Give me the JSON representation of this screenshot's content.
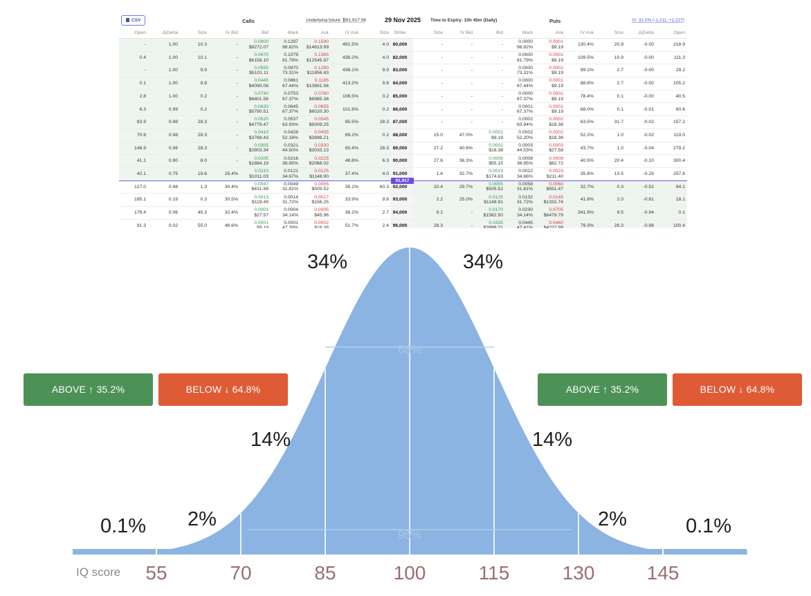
{
  "toolbar": {
    "csv_label": "CSV",
    "calls_label": "Calls",
    "underlying": "Underlying future:  ₿91,917.08",
    "date": "29 Nov 2025",
    "expiry": "Time to Expiry: 15h 45m (Daily)",
    "puts_label": "Puts",
    "iv": "IV: 32.0% (-1,211, +1,227)"
  },
  "columns": [
    "Open",
    "Δ|Delta",
    "Size",
    "IV Bid",
    "Bid",
    "Mark",
    "Ask",
    "IV Ask",
    "Size",
    "Strike",
    "Size",
    "IV Bid",
    "Bid",
    "Mark",
    "Ask",
    "IV Ask",
    "Size",
    "Δ|Delta",
    "Open"
  ],
  "underlying_marker": "91,917",
  "rows": [
    {
      "c_open": "-",
      "c_delta": "1.00",
      "c_size": "10.3",
      "c_ivbid": "-",
      "c_bid": "",
      "c_bid_usd": "",
      "c_mark": "0.1297",
      "c_mark_pct": "98.82%",
      "c_ask": "0.1590",
      "c_ask_usd": "$14613.99",
      "c_ivask": "491.5%",
      "c_asksize": "4.0",
      "strike": "80,000",
      "p_size": "-",
      "p_ivbid": "-",
      "p_bid": "-",
      "p_bid_usd": "",
      "p_mark": "0.0000",
      "p_mark_pct": "98.82%",
      "p_ask": "0.0001",
      "p_ask_usd": "$9.19",
      "p_ivask": "130.4%",
      "p_asksize": "20.9",
      "p_delta": "-0.00",
      "p_open": "218.9",
      "c_bid2": "0.0900",
      "c_bid2_usd": "$8272.07"
    },
    {
      "c_open": "0.4",
      "c_delta": "1.00",
      "c_size": "10.1",
      "c_ivbid": "-",
      "c_bid2": "0.0670",
      "c_bid2_usd": "$6158.10",
      "c_mark": "0.1079",
      "c_mark_pct": "81.79%",
      "c_ask": "0.1365",
      "c_ask_usd": "$12545.97",
      "c_ivask": "436.2%",
      "c_asksize": "4.0",
      "strike": "82,000",
      "p_size": "-",
      "p_ivbid": "-",
      "p_bid": "-",
      "p_bid_usd": "",
      "p_mark": "0.0000",
      "p_mark_pct": "81.79%",
      "p_ask": "0.0001",
      "p_ask_usd": "$9.19",
      "p_ivask": "109.5%",
      "p_asksize": "10.9",
      "p_delta": "-0.00",
      "p_open": "111.3"
    },
    {
      "c_open": "-",
      "c_delta": "1.00",
      "c_size": "9.9",
      "c_ivbid": "-",
      "c_bid2": "0.0555",
      "c_bid2_usd": "$5101.11",
      "c_mark": "0.0970",
      "c_mark_pct": "73.31%",
      "c_ask": "0.1290",
      "c_ask_usd": "$11856.63",
      "c_ivask": "436.1%",
      "c_asksize": "9.9",
      "strike": "83,000",
      "p_size": "-",
      "p_ivbid": "-",
      "p_bid": "-",
      "p_bid_usd": "",
      "p_mark": "0.0000",
      "p_mark_pct": "73.31%",
      "p_ask": "0.0001",
      "p_ask_usd": "$9.19",
      "p_ivask": "99.1%",
      "p_asksize": "2.7",
      "p_delta": "-0.00",
      "p_open": "29.2"
    },
    {
      "c_open": "0.1",
      "c_delta": "1.00",
      "c_size": "9.8",
      "c_ivbid": "-",
      "c_bid2": "0.0445",
      "c_bid2_usd": "$4090.08",
      "c_mark": "0.0861",
      "c_mark_pct": "67.44%",
      "c_ask": "0.1185",
      "c_ask_usd": "$10891.56",
      "c_ivask": "413.2%",
      "c_asksize": "9.8",
      "strike": "84,000",
      "p_size": "-",
      "p_ivbid": "-",
      "p_bid": "-",
      "p_bid_usd": "",
      "p_mark": "0.0000",
      "p_mark_pct": "67.44%",
      "p_ask": "0.0001",
      "p_ask_usd": "$9.19",
      "p_ivask": "88.8%",
      "p_asksize": "2.7",
      "p_delta": "-0.00",
      "p_open": "105.2"
    },
    {
      "c_open": "2.8",
      "c_delta": "1.00",
      "c_size": "0.2",
      "c_ivbid": "-",
      "c_bid2": "0.0740",
      "c_bid2_usd": "$6801.56",
      "c_mark": "0.0753",
      "c_mark_pct": "67.37%",
      "c_ask": "0.0760",
      "c_ask_usd": "$6985.38",
      "c_ivask": "106.5%",
      "c_asksize": "0.2",
      "strike": "85,000",
      "p_size": "-",
      "p_ivbid": "-",
      "p_bid": "-",
      "p_bid_usd": "",
      "p_mark": "0.0000",
      "p_mark_pct": "67.37%",
      "p_ask": "0.0001",
      "p_ask_usd": "$9.19",
      "p_ivask": "78.4%",
      "p_asksize": "0.1",
      "p_delta": "-0.00",
      "p_open": "40.5"
    },
    {
      "c_open": "6.3",
      "c_delta": "0.99",
      "c_size": "0.2",
      "c_ivbid": "-",
      "c_bid2": "0.0630",
      "c_bid2_usd": "$5790.51",
      "c_mark": "0.0645",
      "c_mark_pct": "67.37%",
      "c_ask": "0.0655",
      "c_ask_usd": "$6020.30",
      "c_ivask": "101.8%",
      "c_asksize": "0.2",
      "strike": "86,000",
      "p_size": "-",
      "p_ivbid": "-",
      "p_bid": "-",
      "p_bid_usd": "",
      "p_mark": "0.0001",
      "p_mark_pct": "67.37%",
      "p_ask": "0.0001",
      "p_ask_usd": "$9.19",
      "p_ivask": "68.0%",
      "p_asksize": "0.1",
      "p_delta": "-0.01",
      "p_open": "60.6"
    },
    {
      "c_open": "83.9",
      "c_delta": "0.98",
      "c_size": "28.3",
      "c_ivbid": "-",
      "c_bid2": "0.0520",
      "c_bid2_usd": "$4779.47",
      "c_mark": "0.0537",
      "c_mark_pct": "63.93%",
      "c_ask": "0.0545",
      "c_ask_usd": "$5009.25",
      "c_ivask": "85.5%",
      "c_asksize": "28.3",
      "strike": "87,000",
      "p_size": "-",
      "p_ivbid": "-",
      "p_bid": "-",
      "p_bid_usd": "",
      "p_mark": "0.0002",
      "p_mark_pct": "63.94%",
      "p_ask": "0.0002",
      "p_ask_usd": "$18.38",
      "p_ivask": "63.5%",
      "p_asksize": "31.7",
      "p_delta": "-0.02",
      "p_open": "157.2"
    },
    {
      "c_open": "70.6",
      "c_delta": "0.98",
      "c_size": "28.3",
      "c_ivbid": "-",
      "c_bid2": "0.0410",
      "c_bid2_usd": "$3768.43",
      "c_mark": "0.0428",
      "c_mark_pct": "52.18%",
      "c_ask": "0.0435",
      "c_ask_usd": "$3998.21",
      "c_ivask": "69.2%",
      "c_asksize": "0.2",
      "strike": "88,000",
      "p_size": "15.0",
      "p_ivbid": "47.0%",
      "p_bid": "0.0001",
      "p_bid_usd": "$9.19",
      "p_mark": "0.0002",
      "p_mark_pct": "52.20%",
      "p_ask": "0.0002",
      "p_ask_usd": "$18.38",
      "p_ivask": "52.2%",
      "p_asksize": "1.0",
      "p_delta": "-0.02",
      "p_open": "119.0"
    },
    {
      "c_open": "148.9",
      "c_delta": "0.96",
      "c_size": "28.3",
      "c_ivbid": "-",
      "c_bid2": "0.0305",
      "c_bid2_usd": "$2803.34",
      "c_mark": "0.0321",
      "c_mark_pct": "44.50%",
      "c_ask": "0.0330",
      "c_ask_usd": "$3033.13",
      "c_ivask": "60.4%",
      "c_asksize": "28.3",
      "strike": "89,000",
      "p_size": "27.2",
      "p_ivbid": "40.6%",
      "p_bid": "0.0002",
      "p_bid_usd": "$18.38",
      "p_mark": "0.0003",
      "p_mark_pct": "44.53%",
      "p_ask": "0.0003",
      "p_ask_usd": "$27.58",
      "p_ivask": "43.7%",
      "p_asksize": "1.0",
      "p_delta": "-0.04",
      "p_open": "279.2"
    },
    {
      "c_open": "41.1",
      "c_delta": "0.90",
      "c_size": "8.0",
      "c_ivbid": "-",
      "c_bid2": "0.0205",
      "c_bid2_usd": "$1884.19",
      "c_mark": "0.0216",
      "c_mark_pct": "38.85%",
      "c_ask": "0.0225",
      "c_ask_usd": "$2068.02",
      "c_ivask": "48.8%",
      "c_asksize": "6.3",
      "strike": "90,000",
      "p_size": "27.6",
      "p_ivbid": "36.3%",
      "p_bid": "0.0006",
      "p_bid_usd": "$55.15",
      "p_mark": "0.0008",
      "p_mark_pct": "38.85%",
      "p_ask": "0.0009",
      "p_ask_usd": "$82.72",
      "p_ivask": "40.5%",
      "p_asksize": "20.4",
      "p_delta": "-0.10",
      "p_open": "300.4"
    },
    {
      "c_open": "42.1",
      "c_delta": "0.75",
      "c_size": "19.6",
      "c_ivbid": "25.4%",
      "c_bid2": "0.0110",
      "c_bid2_usd": "$1011.03",
      "c_mark": "0.0121",
      "c_mark_pct": "34.67%",
      "c_ask": "0.0125",
      "c_ask_usd": "$1148.90",
      "c_ivask": "37.4%",
      "c_asksize": "4.0",
      "strike": "91,000",
      "p_size": "1.6",
      "p_ivbid": "32.7%",
      "p_bid": "0.0019",
      "p_bid_usd": "$174.63",
      "p_mark": "0.0022",
      "p_mark_pct": "34.66%",
      "p_ask": "0.0023",
      "p_ask_usd": "$211.40",
      "p_ivask": "35.8%",
      "p_asksize": "13.5",
      "p_delta": "-0.25",
      "p_open": "257.8"
    },
    {
      "c_open": "127.0",
      "c_delta": "0.48",
      "c_size": "1.3",
      "c_ivbid": "30.4%",
      "c_bid2": "0.0047",
      "c_bid2_usd": "$431.99",
      "c_mark": "0.0049",
      "c_mark_pct": "31.81%",
      "c_ask": "0.0055",
      "c_ask_usd": "$505.52",
      "c_ivask": "35.1%",
      "c_asksize": "60.3",
      "strike": "92,000",
      "p_size": "20.4",
      "p_ivbid": "29.7%",
      "p_bid": "0.0055",
      "p_bid_usd": "$505.52",
      "p_mark": "0.0058",
      "p_mark_pct": "31.81%",
      "p_ask": "0.0060",
      "p_ask_usd": "$551.47",
      "p_ivask": "32.7%",
      "p_asksize": "0.3",
      "p_delta": "-0.52",
      "p_open": "94.1"
    },
    {
      "c_open": "195.1",
      "c_delta": "0.19",
      "c_size": "0.3",
      "c_ivbid": "30.5%",
      "c_bid2": "0.0013",
      "c_bid2_usd": "$119.49",
      "c_mark": "0.0014",
      "c_mark_pct": "31.72%",
      "c_ask": "0.0017",
      "c_ask_usd": "$156.25",
      "c_ivask": "33.9%",
      "c_asksize": "9.8",
      "strike": "93,000",
      "p_size": "2.2",
      "p_ivbid": "25.0%",
      "p_bid": "0.0125",
      "p_bid_usd": "$1148.91",
      "p_mark": "0.0132",
      "p_mark_pct": "31.72%",
      "p_ask": "0.0145",
      "p_ask_usd": "$1332.74",
      "p_ivask": "41.8%",
      "p_asksize": "2.0",
      "p_delta": "-0.81",
      "p_open": "18.1"
    },
    {
      "c_open": "179.4",
      "c_delta": "0.06",
      "c_size": "45.3",
      "c_ivbid": "32.4%",
      "c_bid2": "0.0003",
      "c_bid2_usd": "$27.57",
      "c_mark": "0.0004",
      "c_mark_pct": "34.14%",
      "c_ask": "0.0005",
      "c_ask_usd": "$45.96",
      "c_ivask": "36.2%",
      "c_asksize": "2.7",
      "strike": "94,000",
      "p_size": "9.1",
      "p_ivbid": "-",
      "p_bid": "0.0170",
      "p_bid_usd": "$1562.50",
      "p_mark": "0.0230",
      "p_mark_pct": "34.14%",
      "p_ask": "0.0705",
      "p_ask_usd": "$6479.79",
      "p_ivask": "341.9%",
      "p_asksize": "9.5",
      "p_delta": "-0.94",
      "p_open": "0.1"
    },
    {
      "c_open": "91.3",
      "c_delta": "0.02",
      "c_size": "55.0",
      "c_ivbid": "46.6%",
      "c_bid2": "0.0001",
      "c_bid2_usd": "$9.19",
      "c_mark": "0.0001",
      "c_mark_pct": "47.39%",
      "c_ask": "0.0002",
      "c_ask_usd": "$18.38",
      "c_ivask": "51.7%",
      "c_asksize": "2.4",
      "strike": "96,000",
      "p_size": "28.3",
      "p_ivbid": "-",
      "p_bid": "0.0435",
      "p_bid_usd": "$3998.21",
      "p_mark": "0.0445",
      "p_mark_pct": "47.41%",
      "p_ask": "0.0460",
      "p_ask_usd": "$4227.99",
      "p_ivask": "79.3%",
      "p_asksize": "28.3",
      "p_delta": "-0.98",
      "p_open": "100.4"
    }
  ],
  "buttons": {
    "above_left": "ABOVE ↑ 35.2%",
    "below_left": "BELOW ↓ 64.8%",
    "above_right": "ABOVE ↑ 35.2%",
    "below_right": "BELOW ↓ 64.8%"
  },
  "colors": {
    "above": "#4c9257",
    "below": "#de5b36",
    "curve": "#8bb4e2",
    "accent": "#6c4ce0"
  },
  "chart_data": {
    "type": "area",
    "xlabel": "IQ score",
    "ticks": [
      "55",
      "70",
      "85",
      "100",
      "115",
      "130",
      "145"
    ],
    "band_labels": [
      "0.1%",
      "2%",
      "14%",
      "34%",
      "34%",
      "14%",
      "2%",
      "0.1%"
    ],
    "inner_labels": [
      "68%",
      "95%"
    ],
    "mean": 100,
    "sd": 15
  }
}
